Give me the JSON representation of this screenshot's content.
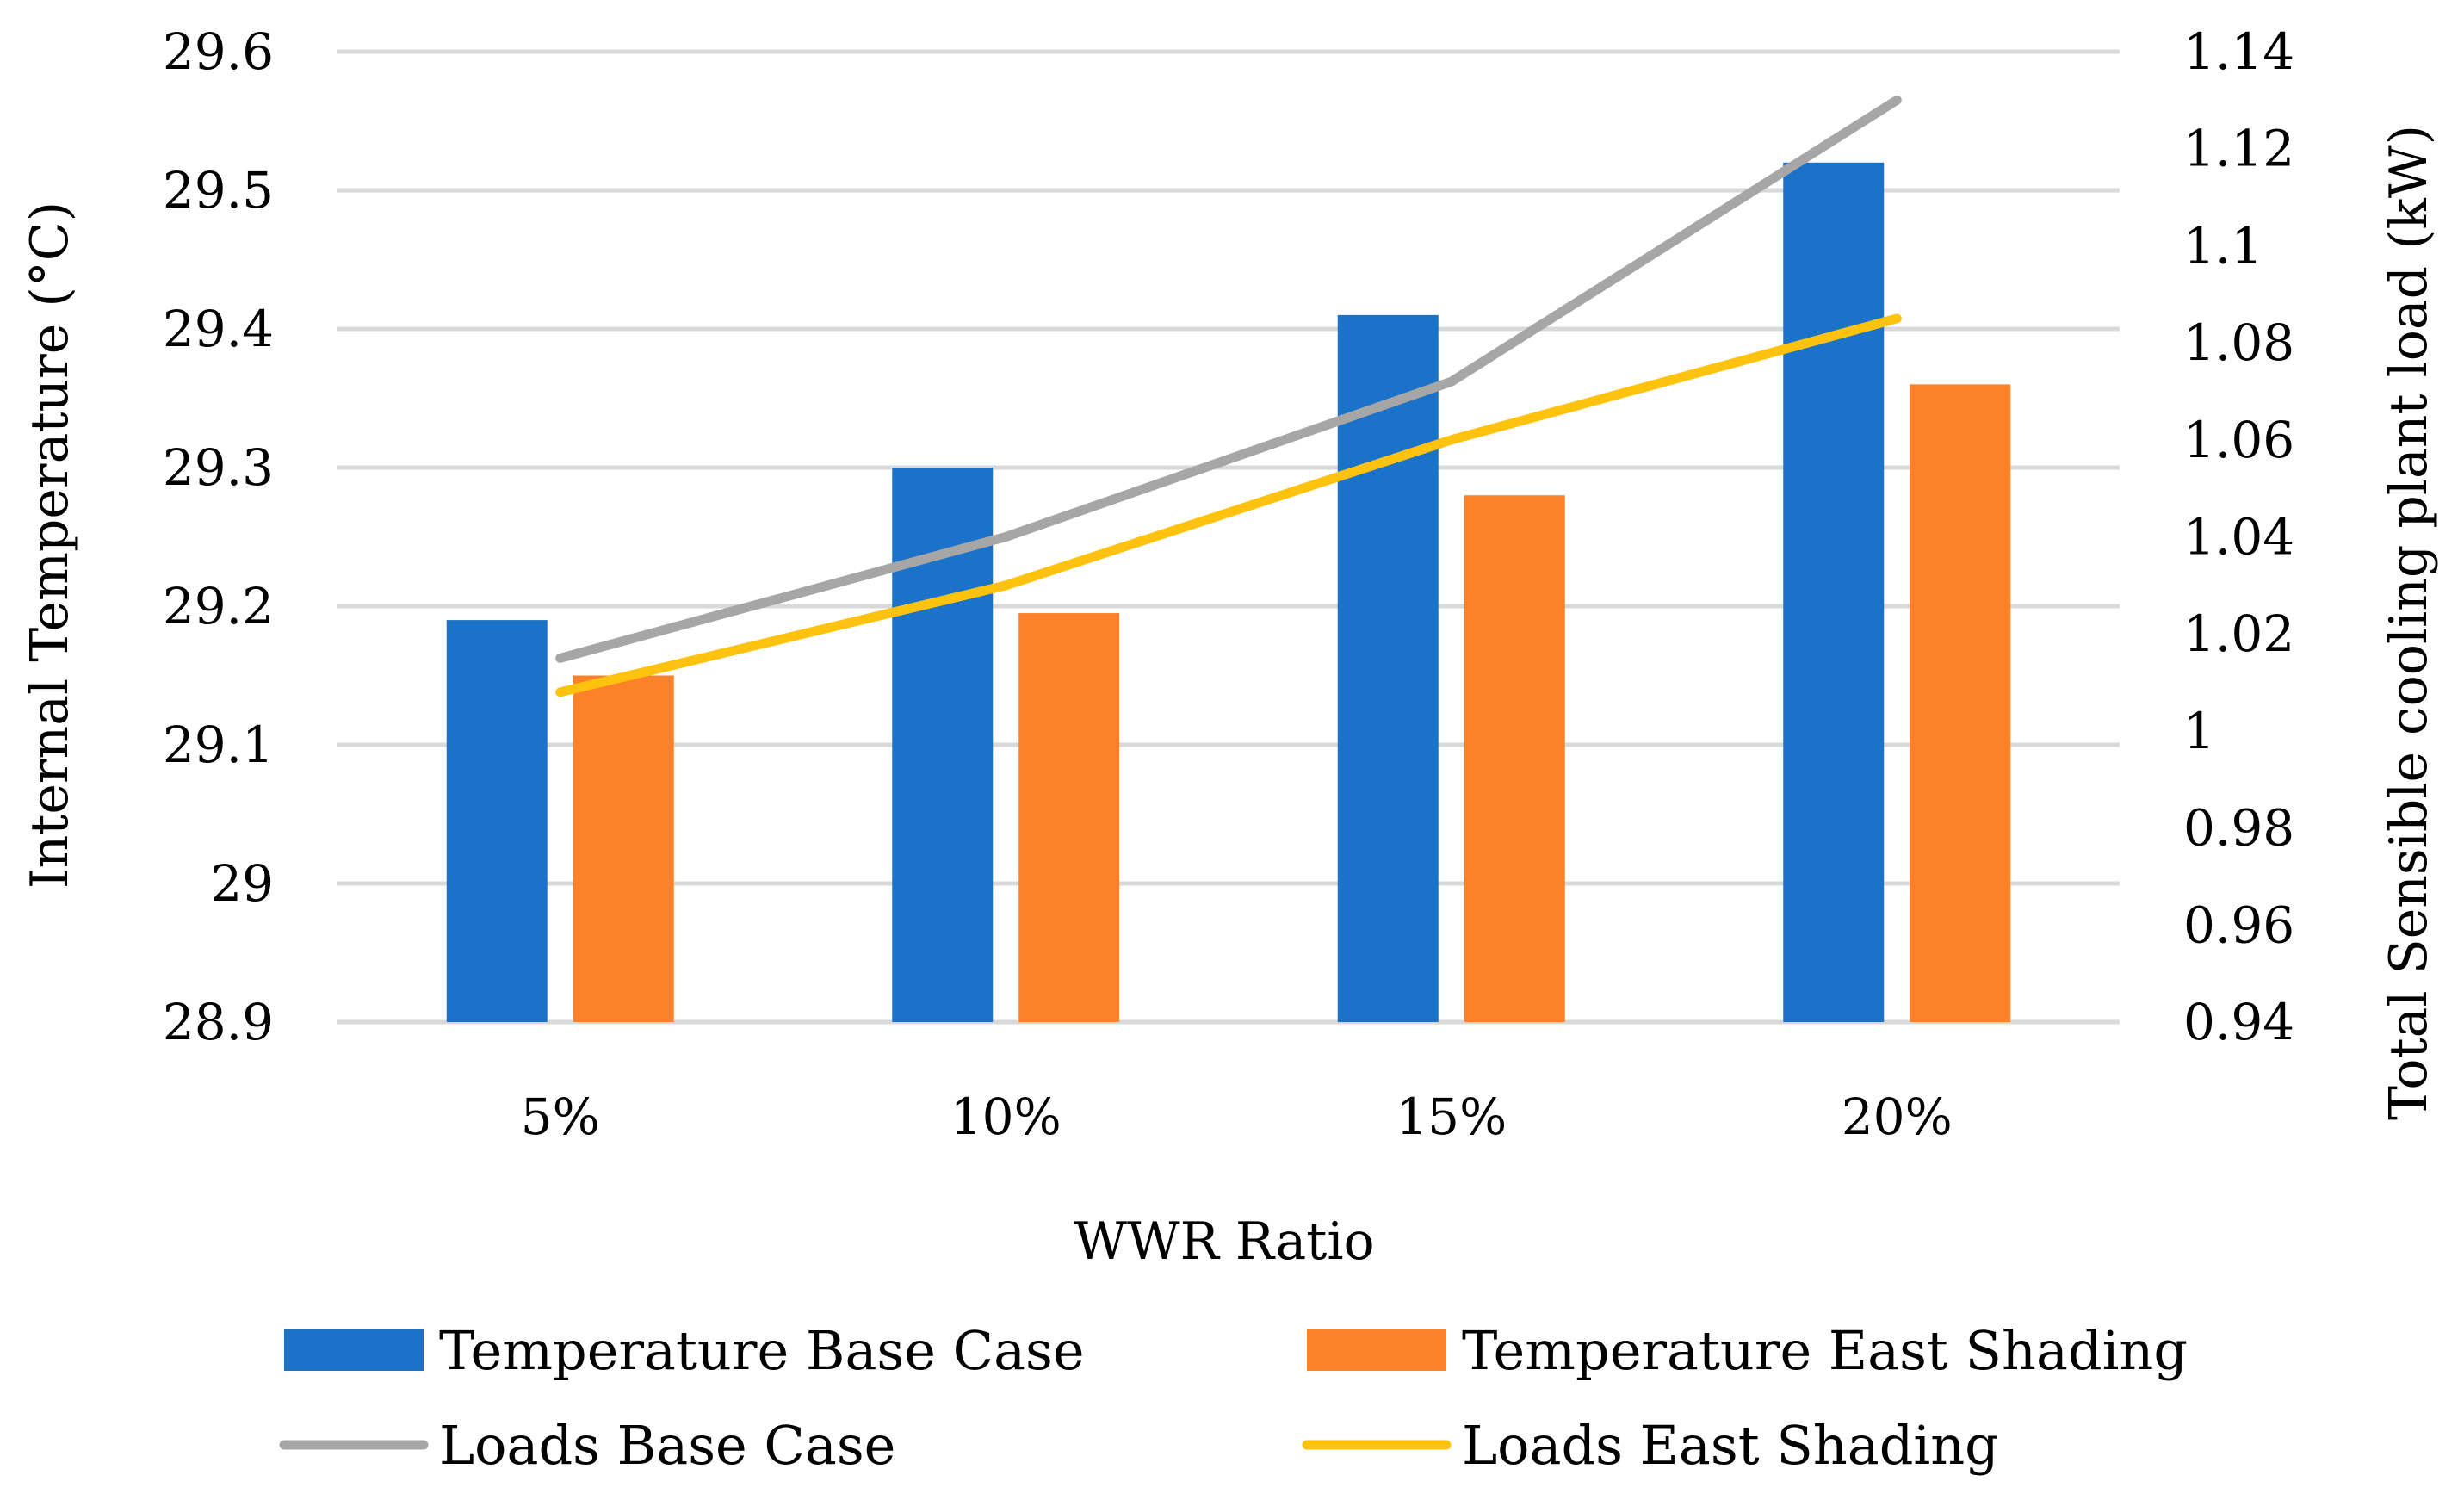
{
  "chart_data": {
    "type": "bar",
    "title": "",
    "xlabel": "WWR Ratio",
    "ylabel": "Internal Temperature (°C)",
    "y2label": "Total Sensible cooling plant load (kW)",
    "categories": [
      "5%",
      "10%",
      "15%",
      "20%"
    ],
    "ylim": [
      28.9,
      29.6
    ],
    "y2lim": [
      0.94,
      1.14
    ],
    "y_ticks": [
      "28.9",
      "29",
      "29.1",
      "29.2",
      "29.3",
      "29.4",
      "29.5",
      "29.6"
    ],
    "y2_ticks": [
      "0.94",
      "0.96",
      "0.98",
      "1",
      "1.02",
      "1.04",
      "1.06",
      "1.08",
      "1.1",
      "1.12",
      "1.14"
    ],
    "grid": true,
    "legend_position": "bottom",
    "series": [
      {
        "name": "Temperature Base Case",
        "kind": "bar",
        "axis": "left",
        "color": "#1a73c8",
        "values": [
          29.19,
          29.3,
          29.41,
          29.52
        ]
      },
      {
        "name": "Temperature East Shading",
        "kind": "bar",
        "axis": "left",
        "color": "#fd8128",
        "values": [
          29.15,
          29.195,
          29.28,
          29.36
        ]
      },
      {
        "name": "Loads Base Case",
        "kind": "line",
        "axis": "right",
        "color": "#a6a6a6",
        "values": [
          1.015,
          1.04,
          1.072,
          1.13
        ]
      },
      {
        "name": "Loads East Shading",
        "kind": "line",
        "axis": "right",
        "color": "#ffc20e",
        "values": [
          1.008,
          1.03,
          1.06,
          1.085
        ]
      }
    ]
  }
}
